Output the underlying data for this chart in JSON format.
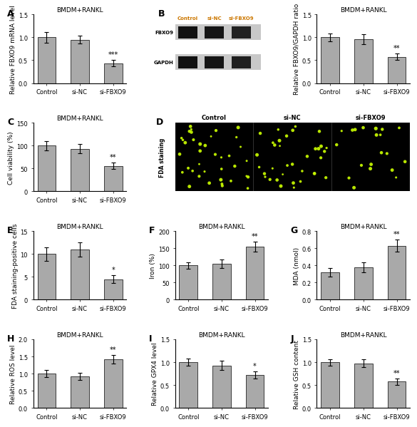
{
  "panel_A": {
    "title": "BMDM+RANKL",
    "ylabel": "Relative FBXO9 mRNA level",
    "categories": [
      "Control",
      "si-NC",
      "si-FBXO9"
    ],
    "values": [
      1.0,
      0.95,
      0.43
    ],
    "errors": [
      0.12,
      0.08,
      0.07
    ],
    "sig_labels": [
      "",
      "",
      "***"
    ],
    "ylim": [
      0,
      1.5
    ],
    "yticks": [
      0.0,
      0.5,
      1.0,
      1.5
    ],
    "label": "A"
  },
  "panel_B_bar": {
    "title": "BMDM+RANKL",
    "ylabel": "Relative FBXO9/GAPDH ratio",
    "categories": [
      "Control",
      "si-NC",
      "si-FBXO9"
    ],
    "values": [
      1.0,
      0.96,
      0.57
    ],
    "errors": [
      0.08,
      0.11,
      0.07
    ],
    "sig_labels": [
      "",
      "",
      "**"
    ],
    "ylim": [
      0,
      1.5
    ],
    "yticks": [
      0.0,
      0.5,
      1.0,
      1.5
    ],
    "label": ""
  },
  "panel_C": {
    "title": "BMDM+RANKL",
    "ylabel": "Cell viability (%)",
    "categories": [
      "Control",
      "si-NC",
      "si-FBXO9"
    ],
    "values": [
      100,
      93,
      56
    ],
    "errors": [
      10,
      10,
      7
    ],
    "sig_labels": [
      "",
      "",
      "**"
    ],
    "ylim": [
      0,
      150
    ],
    "yticks": [
      0,
      50,
      100,
      150
    ],
    "label": "C"
  },
  "panel_E": {
    "title": "BMDM+RANKL",
    "ylabel": "FDA staining-positive cells",
    "categories": [
      "Control",
      "si-NC",
      "si-FBXO9"
    ],
    "values": [
      10,
      11,
      4.5
    ],
    "errors": [
      1.5,
      1.5,
      0.8
    ],
    "sig_labels": [
      "",
      "",
      "*"
    ],
    "ylim": [
      0,
      15
    ],
    "yticks": [
      0,
      5,
      10,
      15
    ],
    "label": "E"
  },
  "panel_F": {
    "title": "BMDM+RANKL",
    "ylabel": "Iron (%)",
    "categories": [
      "Control",
      "si-NC",
      "si-FBXO9"
    ],
    "values": [
      100,
      105,
      155
    ],
    "errors": [
      10,
      12,
      15
    ],
    "sig_labels": [
      "",
      "",
      "**"
    ],
    "ylim": [
      0,
      200
    ],
    "yticks": [
      0,
      50,
      100,
      150,
      200
    ],
    "label": "F"
  },
  "panel_G": {
    "title": "BMDM+RANKL",
    "ylabel": "MDA (nmol)",
    "categories": [
      "Control",
      "si-NC",
      "si-FBXO9"
    ],
    "values": [
      0.32,
      0.38,
      0.63
    ],
    "errors": [
      0.05,
      0.06,
      0.07
    ],
    "sig_labels": [
      "",
      "",
      "**"
    ],
    "ylim": [
      0,
      0.8
    ],
    "yticks": [
      0.0,
      0.2,
      0.4,
      0.6,
      0.8
    ],
    "label": "G"
  },
  "panel_H": {
    "title": "BMDM+RANKL",
    "ylabel": "Relative ROS level",
    "categories": [
      "Control",
      "si-NC",
      "si-FBXO9"
    ],
    "values": [
      1.0,
      0.92,
      1.42
    ],
    "errors": [
      0.1,
      0.1,
      0.12
    ],
    "sig_labels": [
      "",
      "",
      "**"
    ],
    "ylim": [
      0,
      2.0
    ],
    "yticks": [
      0.0,
      0.5,
      1.0,
      1.5,
      2.0
    ],
    "label": "H"
  },
  "panel_I": {
    "title": "BMDM+RANKL",
    "ylabel": "Relative GPX4 level",
    "categories": [
      "Control",
      "si-NC",
      "si-FBXO9"
    ],
    "values": [
      1.0,
      0.93,
      0.72
    ],
    "errors": [
      0.08,
      0.1,
      0.08
    ],
    "sig_labels": [
      "",
      "",
      "*"
    ],
    "ylim": [
      0,
      1.5
    ],
    "yticks": [
      0.0,
      0.5,
      1.0,
      1.5
    ],
    "label": "I"
  },
  "panel_J": {
    "title": "BMDM+RANKL",
    "ylabel": "Relative GSH content",
    "categories": [
      "Control",
      "si-NC",
      "si-FBXO9"
    ],
    "values": [
      1.0,
      0.98,
      0.58
    ],
    "errors": [
      0.07,
      0.08,
      0.07
    ],
    "sig_labels": [
      "",
      "",
      "**"
    ],
    "ylim": [
      0,
      1.5
    ],
    "yticks": [
      0.0,
      0.5,
      1.0,
      1.5
    ],
    "label": "J"
  },
  "bar_color": "#a9a9a9",
  "sig_color": "black",
  "axis_fontsize": 6.5,
  "title_fontsize": 6.5,
  "label_fontsize": 9,
  "tick_fontsize": 6,
  "sig_fontsize": 7,
  "blot_col_labels": [
    "Control",
    "si-NC",
    "si-FBXO9"
  ],
  "blot_row_labels": [
    "FBXO9",
    "GAPDH"
  ],
  "blot_label": "B",
  "blot_label_color": "#cc7700",
  "fda_titles": [
    "Control",
    "si-NC",
    "si-FBXO9"
  ],
  "fda_label": "D",
  "fda_ylabel": "FDA staining",
  "fda_n_dots": [
    38,
    35,
    20
  ],
  "fda_dot_color": "#ccff00",
  "fda_bg_color": "black"
}
